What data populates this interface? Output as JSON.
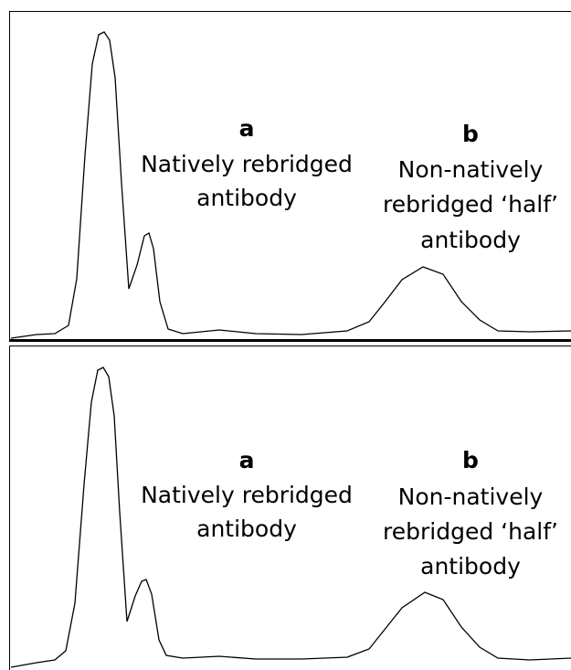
{
  "panels": [
    {
      "peak_a": {
        "letter": "a",
        "lines": [
          "Natively rebridged",
          "antibody"
        ]
      },
      "peak_b": {
        "letter": "b",
        "lines": [
          "Non-natively",
          "rebridged ‘half’",
          "antibody"
        ]
      }
    },
    {
      "peak_a": {
        "letter": "a",
        "lines": [
          "Natively rebridged",
          "antibody"
        ]
      },
      "peak_b": {
        "letter": "b",
        "lines": [
          "Non-natively",
          "rebridged ‘half’",
          "antibody"
        ]
      }
    }
  ]
}
